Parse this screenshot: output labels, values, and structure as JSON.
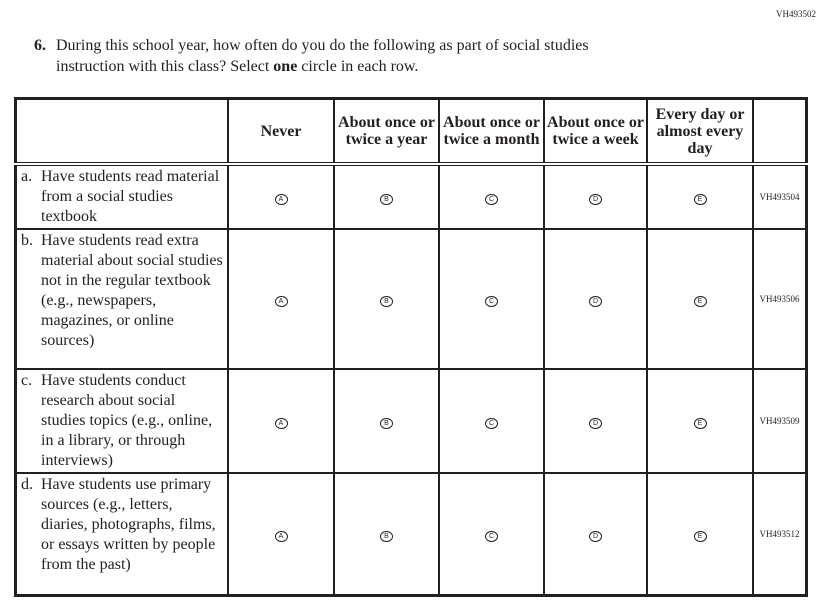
{
  "page_code": "VH493502",
  "question": {
    "number": "6.",
    "line1": "During this school year, how often do you do the following as part of social studies",
    "line2_pre": "instruction with this class? Select ",
    "line2_bold": "one",
    "line2_post": " circle in each row."
  },
  "columns": [
    "Never",
    "About once or twice a year",
    "About once or twice a month",
    "About once or twice a week",
    "Every day or almost every day"
  ],
  "options": [
    "A",
    "B",
    "C",
    "D",
    "E"
  ],
  "rows": [
    {
      "letter": "a.",
      "text": "Have students read material from a social studies textbook",
      "id": "VH493504"
    },
    {
      "letter": "b.",
      "text": "Have students read extra material about social studies not in the regular textbook (e.g., newspapers, magazines, or online sources)",
      "id": "VH493506"
    },
    {
      "letter": "c.",
      "text": "Have students conduct research about social studies topics (e.g., online, in a library, or through interviews)",
      "id": "VH493509"
    },
    {
      "letter": "d.",
      "text": "Have students use primary sources (e.g., letters, diaries, photographs, films, or essays written by people from the past)",
      "id": "VH493512"
    }
  ]
}
